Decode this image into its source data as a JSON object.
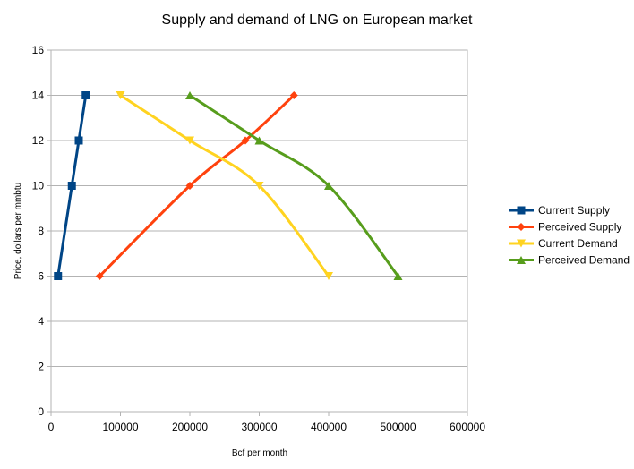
{
  "chart_data": {
    "type": "scatter",
    "title": "Supply and demand of LNG on European market",
    "xlabel": "Bcf per month",
    "ylabel": "Price, dollars per mmbtu",
    "xlim": [
      0,
      600000
    ],
    "ylim": [
      0,
      16
    ],
    "x_ticks": [
      0,
      100000,
      200000,
      300000,
      400000,
      500000,
      600000
    ],
    "y_ticks": [
      0,
      2,
      4,
      6,
      8,
      10,
      12,
      14,
      16
    ],
    "grid": "horizontal",
    "legend_position": "right",
    "series": [
      {
        "name": "Current Supply",
        "color": "#004586",
        "marker": "square",
        "smooth": true,
        "points": [
          [
            10000,
            6
          ],
          [
            30000,
            10
          ],
          [
            40000,
            12
          ],
          [
            50000,
            14
          ]
        ]
      },
      {
        "name": "Perceived Supply",
        "color": "#ff420e",
        "marker": "diamond",
        "smooth": true,
        "points": [
          [
            70000,
            6
          ],
          [
            200000,
            10
          ],
          [
            280000,
            12
          ],
          [
            350000,
            14
          ]
        ]
      },
      {
        "name": "Current Demand",
        "color": "#ffd320",
        "marker": "triangle-down",
        "smooth": true,
        "points": [
          [
            100000,
            14
          ],
          [
            200000,
            12
          ],
          [
            300000,
            10
          ],
          [
            400000,
            6
          ]
        ]
      },
      {
        "name": "Perceived Demand",
        "color": "#579d1c",
        "marker": "triangle-up",
        "smooth": true,
        "points": [
          [
            200000,
            14
          ],
          [
            300000,
            12
          ],
          [
            400000,
            10
          ],
          [
            500000,
            6
          ]
        ]
      }
    ]
  }
}
